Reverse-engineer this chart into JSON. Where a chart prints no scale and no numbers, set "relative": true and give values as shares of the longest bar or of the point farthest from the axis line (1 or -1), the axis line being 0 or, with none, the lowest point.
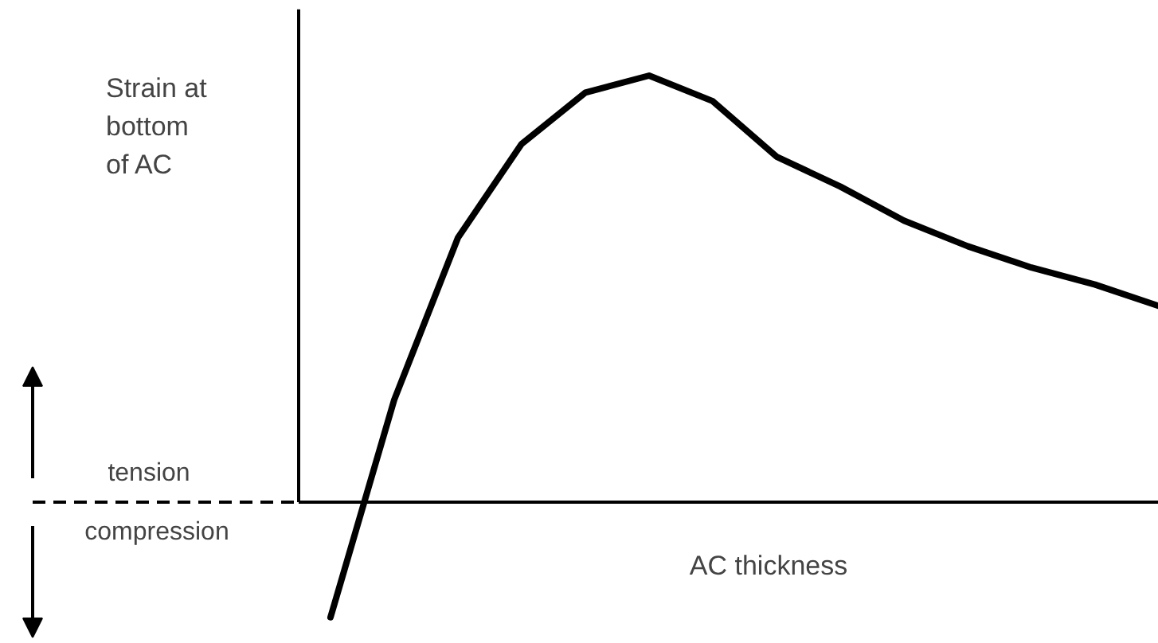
{
  "chart_data": {
    "type": "line",
    "relative": true,
    "xlabel": "AC thickness",
    "ylabel": "Strain at\nbottom\nof AC",
    "annotations": [
      "tension",
      "compression"
    ],
    "categories": [
      null,
      null,
      null,
      null,
      null,
      null,
      null,
      null,
      null,
      null,
      null,
      null,
      null,
      null
    ],
    "values": [
      -0.27,
      0.24,
      0.62,
      0.84,
      0.96,
      1.0,
      0.94,
      0.81,
      0.74,
      0.66,
      0.6,
      0.55,
      0.51,
      0.46
    ],
    "color": "#000000"
  }
}
